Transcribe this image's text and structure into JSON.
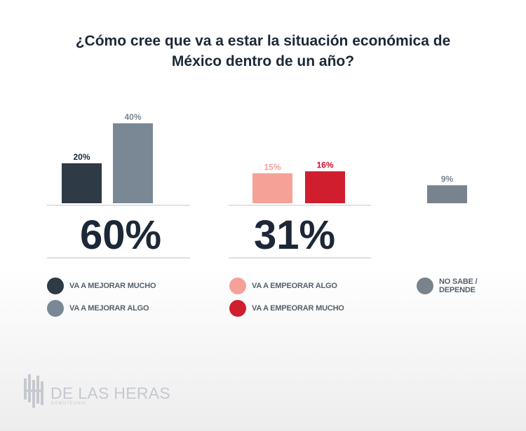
{
  "title_line1": "¿Cómo cree que va a estar la situación económica de",
  "title_line2": "México dentro de un año?",
  "chart_data": {
    "type": "bar",
    "title": "¿Cómo cree que va a estar la situación económica de México dentro de un año?",
    "ylim": [
      0,
      40
    ],
    "groups": [
      {
        "total_label": "60%",
        "bars": [
          {
            "name": "VA A MEJORAR MUCHO",
            "value": 20,
            "label": "20%",
            "color": "#2e3a45",
            "label_color": "#1c2837"
          },
          {
            "name": "VA A MEJORAR ALGO",
            "value": 40,
            "label": "40%",
            "color": "#7a8896",
            "label_color": "#7a8896"
          }
        ]
      },
      {
        "total_label": "31%",
        "bars": [
          {
            "name": "VA A EMPEORAR ALGO",
            "value": 15,
            "label": "15%",
            "color": "#f5a198",
            "label_color": "#f5a198"
          },
          {
            "name": "VA A EMPEORAR MUCHO",
            "value": 16,
            "label": "16%",
            "color": "#d01e2e",
            "label_color": "#c8102e"
          }
        ]
      },
      {
        "total_label": "",
        "bars": [
          {
            "name": "NO SABE / DEPENDE",
            "value": 9,
            "label": "9%",
            "color": "#78838d",
            "label_color": "#78838d"
          }
        ]
      }
    ]
  },
  "legend": [
    {
      "label": "VA A MEJORAR MUCHO",
      "color": "#2e3a45"
    },
    {
      "label": "VA A MEJORAR ALGO",
      "color": "#7a8896"
    },
    {
      "label": "VA A EMPEORAR ALGO",
      "color": "#f5a198"
    },
    {
      "label": "VA A EMPEORAR MUCHO",
      "color": "#d01e2e"
    },
    {
      "label_line1": "NO SABE /",
      "label_line2": "DEPENDE",
      "color": "#78838d"
    }
  ],
  "logo": {
    "name": "DE LAS HERAS",
    "subtitle": "DEMOTECNIA",
    "icon": "building-bars-icon"
  }
}
